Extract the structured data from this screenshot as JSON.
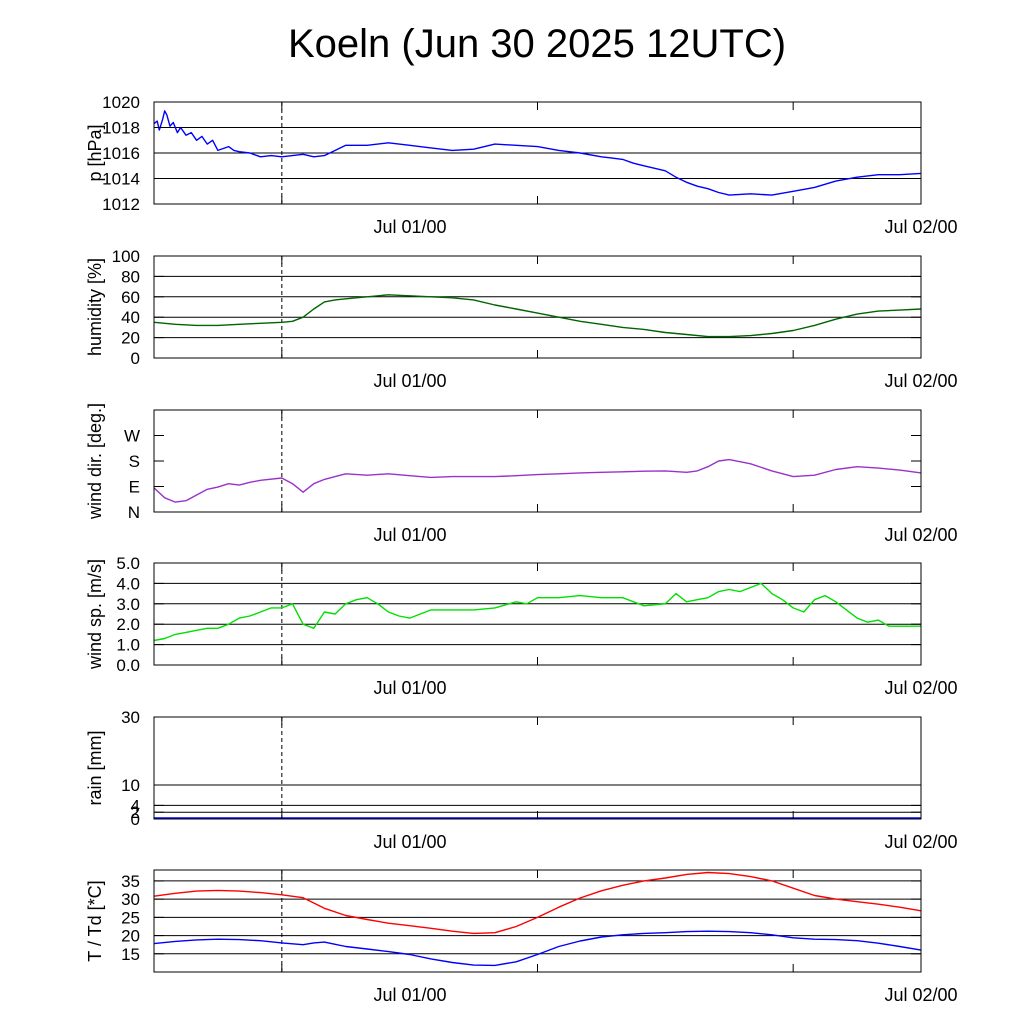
{
  "title": "Koeln (Jun 30 2025 12UTC)",
  "x_tick_labels": [
    "Jul 01/00",
    "Jul 02/00"
  ],
  "chart_data": [
    {
      "id": "pressure",
      "type": "line",
      "ylabel": "p [hPa]",
      "ylim": [
        1012,
        1020
      ],
      "yticks": [
        1012,
        1014,
        1016,
        1018,
        1020
      ],
      "ytick_labels": [
        "1012",
        "1014",
        "1016",
        "1018",
        "1020"
      ],
      "grid_lines": [
        1014,
        1016,
        1018,
        1020
      ],
      "xlim": [
        "2025-06-30T00:00Z",
        "2025-07-02T00:00Z"
      ],
      "series": [
        {
          "color": "#0000ff",
          "x": [
            0,
            0.3,
            0.5,
            0.8,
            1.0,
            1.2,
            1.5,
            1.8,
            2.2,
            2.5,
            3,
            3.5,
            4,
            4.5,
            5,
            5.5,
            6,
            7,
            7.5,
            8,
            9,
            10,
            11,
            12,
            13,
            14,
            15,
            16,
            18,
            20,
            22,
            24,
            26,
            28,
            30,
            32,
            34,
            36,
            38,
            40,
            42,
            43,
            44,
            45,
            46,
            48,
            49,
            50,
            51,
            52,
            53,
            54,
            56,
            58,
            60,
            62,
            64,
            66,
            68,
            70,
            72
          ],
          "y": [
            1018.3,
            1018.5,
            1017.8,
            1018.6,
            1019.3,
            1019.0,
            1018.1,
            1018.4,
            1017.6,
            1018.0,
            1017.4,
            1017.6,
            1017.0,
            1017.3,
            1016.7,
            1017.0,
            1016.2,
            1016.5,
            1016.2,
            1016.1,
            1016.0,
            1015.7,
            1015.8,
            1015.7,
            1015.8,
            1015.9,
            1015.7,
            1015.8,
            1016.6,
            1016.6,
            1016.8,
            1016.6,
            1016.4,
            1016.2,
            1016.3,
            1016.7,
            1016.6,
            1016.5,
            1016.2,
            1016.0,
            1015.7,
            1015.6,
            1015.5,
            1015.2,
            1015.0,
            1014.6,
            1014.1,
            1013.7,
            1013.4,
            1013.2,
            1012.9,
            1012.7,
            1012.8,
            1012.7,
            1013.0,
            1013.3,
            1013.8,
            1014.1,
            1014.3,
            1014.3,
            1014.4
          ]
        }
      ]
    },
    {
      "id": "humidity",
      "type": "line",
      "ylabel": "humidity [%]",
      "ylim": [
        0,
        100
      ],
      "yticks": [
        0,
        20,
        40,
        60,
        80,
        100
      ],
      "ytick_labels": [
        "0",
        "20",
        "40",
        "60",
        "80",
        "100"
      ],
      "grid_lines": [
        20,
        40,
        60,
        80,
        100
      ],
      "xlim": [
        "2025-06-30T00:00Z",
        "2025-07-02T00:00Z"
      ],
      "series": [
        {
          "color": "#006400",
          "x": [
            0,
            2,
            4,
            6,
            8,
            10,
            12,
            13,
            14,
            15,
            16,
            17,
            18,
            20,
            22,
            24,
            26,
            28,
            30,
            32,
            34,
            36,
            38,
            40,
            42,
            44,
            46,
            48,
            50,
            52,
            54,
            56,
            58,
            60,
            62,
            64,
            66,
            68,
            70,
            72
          ],
          "y": [
            35,
            33,
            32,
            32,
            33,
            34,
            35,
            36,
            40,
            48,
            55,
            57,
            58,
            60,
            62,
            61,
            60,
            59,
            57,
            52,
            48,
            44,
            40,
            36,
            33,
            30,
            28,
            25,
            23,
            21,
            21,
            22,
            24,
            27,
            32,
            38,
            43,
            46,
            47,
            48
          ]
        }
      ]
    },
    {
      "id": "wind_direction",
      "type": "line",
      "ylabel": "wind dir. [deg.]",
      "ylim": [
        0,
        360
      ],
      "yticks": [
        0,
        90,
        180,
        270
      ],
      "ytick_labels": [
        "N",
        "E",
        "S",
        "W"
      ],
      "grid_lines": [],
      "xlim": [
        "2025-06-30T00:00Z",
        "2025-07-02T00:00Z"
      ],
      "series": [
        {
          "color": "#9932cc",
          "x": [
            0,
            1,
            2,
            3,
            4,
            5,
            6,
            7,
            8,
            9,
            10,
            12,
            13,
            14,
            15,
            16,
            17,
            18,
            20,
            22,
            24,
            26,
            28,
            30,
            32,
            34,
            36,
            38,
            40,
            42,
            44,
            46,
            48,
            50,
            51,
            52,
            53,
            54,
            56,
            58,
            60,
            62,
            64,
            66,
            68,
            70,
            72
          ],
          "y": [
            85,
            50,
            35,
            40,
            60,
            80,
            88,
            100,
            95,
            105,
            112,
            120,
            100,
            70,
            100,
            115,
            125,
            135,
            130,
            135,
            128,
            122,
            125,
            125,
            125,
            128,
            132,
            135,
            138,
            140,
            142,
            144,
            145,
            140,
            145,
            160,
            180,
            185,
            170,
            145,
            125,
            130,
            150,
            160,
            155,
            148,
            138
          ]
        }
      ]
    },
    {
      "id": "wind_speed",
      "type": "line",
      "ylabel": "wind sp. [m/s]",
      "ylim": [
        0,
        5
      ],
      "yticks": [
        0,
        1,
        2,
        3,
        4,
        5
      ],
      "ytick_labels": [
        "0.0",
        "1.0",
        "2.0",
        "3.0",
        "4.0",
        "5.0"
      ],
      "grid_lines": [
        1,
        2,
        3,
        4,
        5
      ],
      "xlim": [
        "2025-06-30T00:00Z",
        "2025-07-02T00:00Z"
      ],
      "series": [
        {
          "color": "#00e000",
          "x": [
            0,
            1,
            2,
            3,
            4,
            5,
            6,
            7,
            8,
            9,
            10,
            11,
            12,
            13,
            14,
            15,
            16,
            17,
            18,
            19,
            20,
            21,
            22,
            23,
            24,
            26,
            28,
            30,
            32,
            34,
            35,
            36,
            37,
            38,
            40,
            42,
            44,
            46,
            48,
            49,
            50,
            51,
            52,
            53,
            54,
            55,
            56,
            57,
            58,
            59,
            60,
            61,
            62,
            63,
            64,
            65,
            66,
            67,
            68,
            69,
            70,
            72
          ],
          "y": [
            1.2,
            1.3,
            1.5,
            1.6,
            1.7,
            1.8,
            1.8,
            2.0,
            2.3,
            2.4,
            2.6,
            2.8,
            2.8,
            3.0,
            2.0,
            1.8,
            2.6,
            2.5,
            3.0,
            3.2,
            3.3,
            3.0,
            2.6,
            2.4,
            2.3,
            2.7,
            2.7,
            2.7,
            2.8,
            3.1,
            3.0,
            3.3,
            3.3,
            3.3,
            3.4,
            3.3,
            3.3,
            2.9,
            3.0,
            3.5,
            3.1,
            3.2,
            3.3,
            3.6,
            3.7,
            3.6,
            3.8,
            4.0,
            3.5,
            3.2,
            2.8,
            2.6,
            3.2,
            3.4,
            3.1,
            2.7,
            2.3,
            2.1,
            2.2,
            1.9,
            1.9,
            1.9
          ]
        }
      ]
    },
    {
      "id": "rain",
      "type": "line",
      "ylabel": "rain [mm]",
      "ylim": [
        0,
        30
      ],
      "yticks": [
        0,
        2,
        4,
        10,
        30
      ],
      "ytick_labels": [
        "0",
        "2",
        "4",
        "10",
        "30"
      ],
      "grid_lines": [
        2,
        4,
        10,
        30
      ],
      "xlim": [
        "2025-06-30T00:00Z",
        "2025-07-02T00:00Z"
      ],
      "series": []
    },
    {
      "id": "temperature",
      "type": "line",
      "ylabel": "T / Td [*C]",
      "ylim": [
        10,
        38
      ],
      "yticks": [
        15,
        20,
        25,
        30,
        35
      ],
      "ytick_labels": [
        "15",
        "20",
        "25",
        "30",
        "35"
      ],
      "grid_lines": [
        15,
        20,
        25,
        30,
        35,
        38
      ],
      "xlim": [
        "2025-06-30T00:00Z",
        "2025-07-02T00:00Z"
      ],
      "series": [
        {
          "color": "#ff0000",
          "x": [
            0,
            2,
            4,
            6,
            8,
            10,
            12,
            14,
            16,
            18,
            20,
            22,
            24,
            26,
            28,
            30,
            32,
            34,
            36,
            38,
            40,
            42,
            44,
            46,
            48,
            50,
            52,
            54,
            56,
            58,
            60,
            62,
            64,
            66,
            68,
            70,
            72
          ],
          "y": [
            30.8,
            31.6,
            32.2,
            32.4,
            32.2,
            31.8,
            31.2,
            30.4,
            27.5,
            25.5,
            24.4,
            23.4,
            22.7,
            22.0,
            21.2,
            20.6,
            20.8,
            22.5,
            25.0,
            27.8,
            30.3,
            32.3,
            33.8,
            35.0,
            35.8,
            36.8,
            37.3,
            37.0,
            36.2,
            35.0,
            33.0,
            31.0,
            30.0,
            29.3,
            28.6,
            27.8,
            26.8
          ]
        },
        {
          "color": "#0000ff",
          "x": [
            0,
            2,
            4,
            6,
            8,
            10,
            12,
            14,
            15,
            16,
            17,
            18,
            20,
            22,
            24,
            26,
            28,
            30,
            32,
            34,
            36,
            38,
            40,
            42,
            44,
            46,
            48,
            50,
            52,
            54,
            56,
            58,
            60,
            62,
            64,
            66,
            68,
            70,
            72
          ],
          "y": [
            17.8,
            18.4,
            18.8,
            19.0,
            18.9,
            18.6,
            18.0,
            17.5,
            18.0,
            18.2,
            17.6,
            17.0,
            16.3,
            15.6,
            14.8,
            13.6,
            12.6,
            11.9,
            11.8,
            12.8,
            14.8,
            17.0,
            18.5,
            19.6,
            20.2,
            20.6,
            20.8,
            21.1,
            21.2,
            21.1,
            20.8,
            20.2,
            19.4,
            19.0,
            18.9,
            18.6,
            17.9,
            17.0,
            16.0
          ]
        }
      ]
    }
  ]
}
